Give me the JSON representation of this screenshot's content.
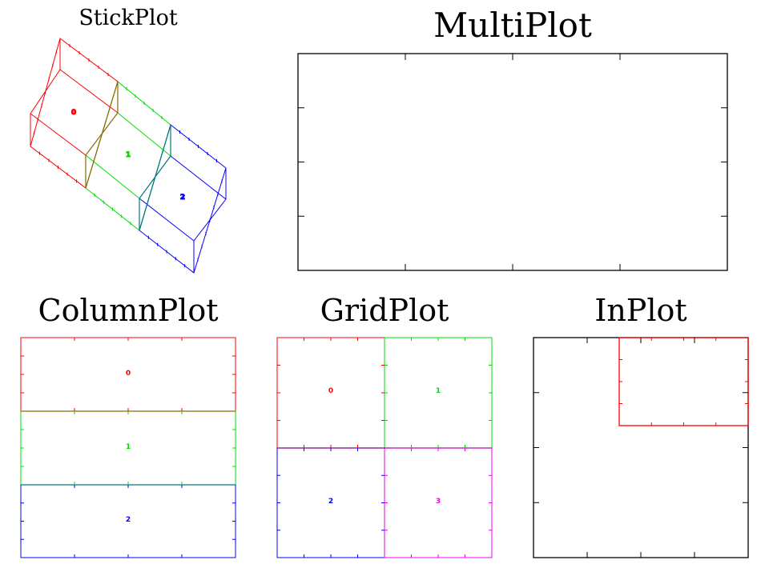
{
  "titles": {
    "stick": "StickPlot",
    "multi": "MultiPlot",
    "column": "ColumnPlot",
    "grid": "GridPlot",
    "inplot": "InPlot"
  },
  "colors": {
    "axis": "#000000",
    "p0": "#ff0000",
    "p1": "#00dd00",
    "p2": "#0000ff",
    "p3": "#ee00ee"
  },
  "stick_plot": {
    "panels": [
      {
        "label": "0",
        "color": "p0"
      },
      {
        "label": "1",
        "color": "p1"
      },
      {
        "label": "2",
        "color": "p2"
      }
    ]
  },
  "column_plot": {
    "panels": [
      {
        "label": "0",
        "color": "p0"
      },
      {
        "label": "1",
        "color": "p1"
      },
      {
        "label": "2",
        "color": "p2"
      }
    ]
  },
  "grid_plot": {
    "panels": [
      {
        "label": "0",
        "color": "p0"
      },
      {
        "label": "1",
        "color": "p1"
      },
      {
        "label": "2",
        "color": "p2"
      },
      {
        "label": "3",
        "color": "p3"
      }
    ]
  }
}
